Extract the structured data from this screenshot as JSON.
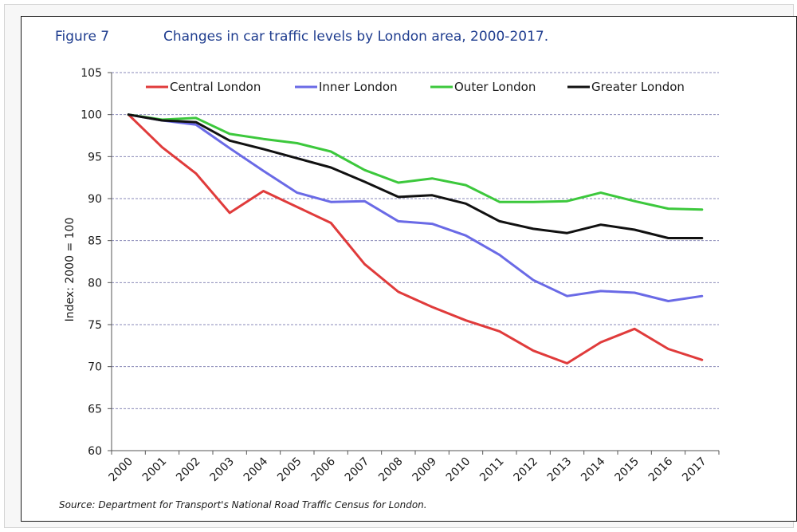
{
  "figure": {
    "number": "Figure 7",
    "title": "Changes in car traffic levels by London area, 2000-2017.",
    "source": "Source: Department for Transport's National Road Traffic Census for London."
  },
  "chart_data": {
    "type": "line",
    "title": "Changes in car traffic levels by London area, 2000-2017.",
    "xlabel": "",
    "ylabel": "Index: 2000 = 100",
    "ylim": [
      60,
      105
    ],
    "yticks": [
      60,
      65,
      70,
      75,
      80,
      85,
      90,
      95,
      100,
      105
    ],
    "categories": [
      "2000",
      "2001",
      "2002",
      "2003",
      "2004",
      "2005",
      "2006",
      "2007",
      "2008",
      "2009",
      "2010",
      "2011",
      "2012",
      "2013",
      "2014",
      "2015",
      "2016",
      "2017"
    ],
    "grid": "horizontal dashed",
    "legend_position": "top",
    "series": [
      {
        "name": "Central London",
        "color": "#e03b3b",
        "values": [
          100,
          96.1,
          93.0,
          88.3,
          90.9,
          89.0,
          87.1,
          82.2,
          78.9,
          77.1,
          75.5,
          74.2,
          71.9,
          70.4,
          72.9,
          74.5,
          72.1,
          70.8
        ]
      },
      {
        "name": "Inner London",
        "color": "#6a6ae6",
        "values": [
          100,
          99.3,
          98.8,
          96.0,
          93.3,
          90.7,
          89.6,
          89.7,
          87.3,
          87.0,
          85.6,
          83.3,
          80.3,
          78.4,
          79.0,
          78.8,
          77.8,
          78.4
        ]
      },
      {
        "name": "Outer London",
        "color": "#3cc83c",
        "values": [
          100,
          99.4,
          99.6,
          97.7,
          97.1,
          96.6,
          95.6,
          93.4,
          91.9,
          92.4,
          91.6,
          89.6,
          89.6,
          89.7,
          90.7,
          89.7,
          88.8,
          88.7
        ]
      },
      {
        "name": "Greater London",
        "color": "#111111",
        "values": [
          100,
          99.3,
          99.1,
          96.9,
          95.9,
          94.8,
          93.7,
          92.0,
          90.2,
          90.4,
          89.4,
          87.3,
          86.4,
          85.9,
          86.9,
          86.3,
          85.3,
          85.3
        ]
      }
    ]
  }
}
